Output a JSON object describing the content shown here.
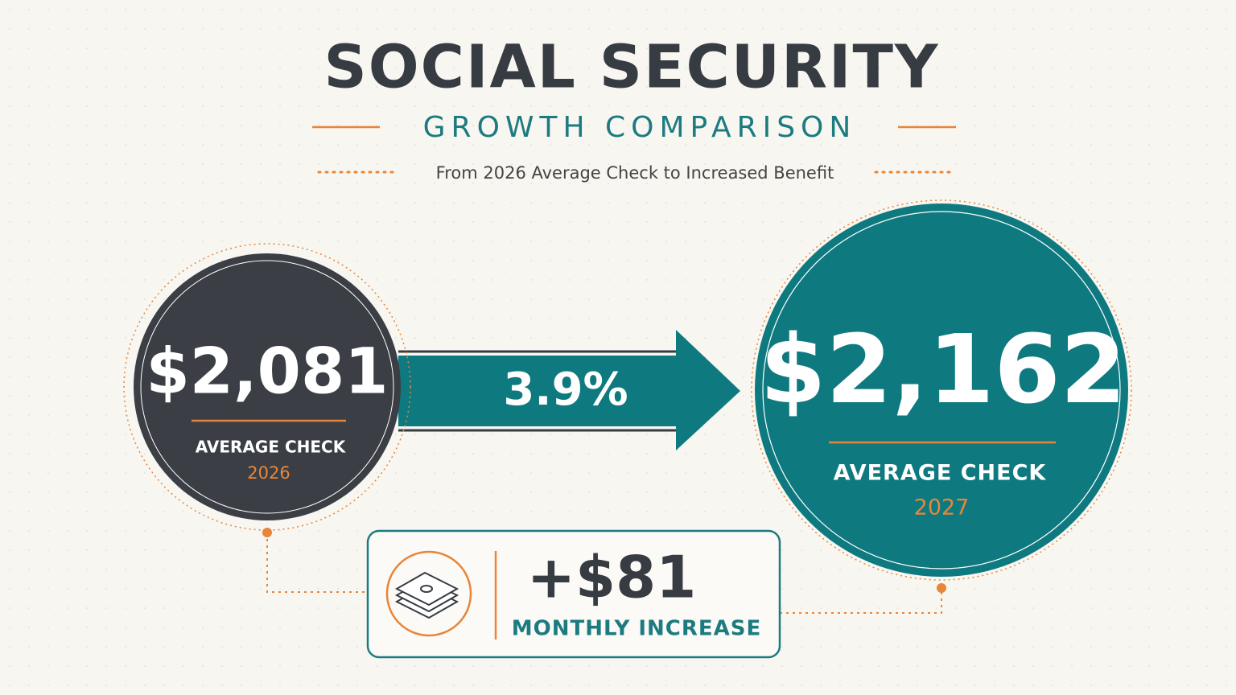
{
  "header": {
    "title": "SOCIAL SECURITY",
    "subtitle": "GROWTH COMPARISON",
    "tagline": "From 2026 Average Check to Increased Benefit"
  },
  "before": {
    "amount": "$2,081",
    "label": "AVERAGE CHECK",
    "year": "2026"
  },
  "growth": {
    "rate": "3.9%"
  },
  "after": {
    "amount": "$2,162",
    "label": "AVERAGE CHECK",
    "year": "2027"
  },
  "increase": {
    "amount": "+$81",
    "label": "MONTHLY INCREASE"
  }
}
